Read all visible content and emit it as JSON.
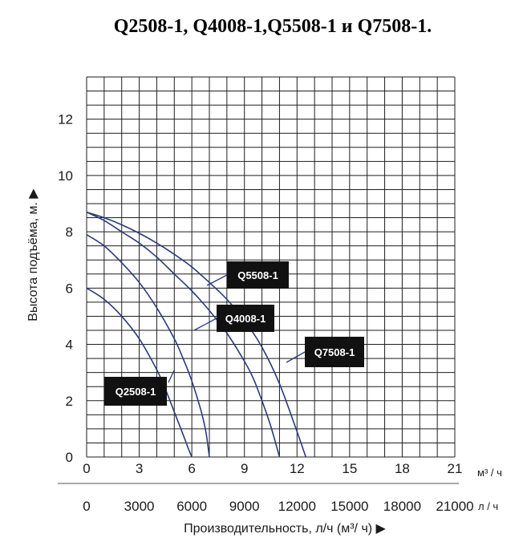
{
  "title": "Q2508-1, Q4008-1,Q5508-1 и Q7508-1.",
  "colors": {
    "grid": "#1e1e1e",
    "curve": "#2b3b7a",
    "callout_bg": "#111111",
    "callout_text": "#ffffff"
  },
  "chart_data": {
    "type": "line",
    "title": "Q2508-1, Q4008-1,Q5508-1 и Q7508-1.",
    "ylabel": "Высота подъёма, м. ▶",
    "xlabel": "Производительность, л/ч (м³/ ч) ▶",
    "x_unit": "м³ / ч",
    "x2_unit": "л / ч",
    "xlim": [
      0,
      21
    ],
    "ylim": [
      0,
      13.5
    ],
    "x_ticks": [
      "0",
      "3",
      "6",
      "9",
      "12",
      "15",
      "18",
      "21"
    ],
    "x_tick_values": [
      0,
      3,
      6,
      9,
      12,
      15,
      18,
      21
    ],
    "x2_ticks": [
      "0",
      "3000",
      "6000",
      "9000",
      "12000",
      "15000",
      "18000",
      "21000"
    ],
    "y_ticks": [
      "0",
      "2",
      "4",
      "6",
      "8",
      "10",
      "12"
    ],
    "y_tick_values": [
      0,
      2,
      4,
      6,
      8,
      10,
      12
    ],
    "grid": true,
    "series": [
      {
        "name": "Q2508-1",
        "x": [
          0,
          1,
          2,
          3,
          4,
          4.5,
          5,
          5.5,
          5.8,
          6
        ],
        "y": [
          6,
          5.6,
          5.0,
          4.2,
          3.1,
          2.4,
          1.6,
          0.8,
          0.3,
          0
        ]
      },
      {
        "name": "Q4008-1",
        "x": [
          0,
          1,
          2,
          3,
          4,
          5,
          5.5,
          6,
          6.5,
          6.8,
          7
        ],
        "y": [
          7.9,
          7.5,
          6.9,
          6.2,
          5.3,
          4.2,
          3.5,
          2.7,
          1.7,
          0.9,
          0
        ]
      },
      {
        "name": "Q5508-1",
        "x": [
          0,
          1,
          2,
          3,
          4,
          5,
          6,
          7,
          8,
          9,
          9.5,
          10,
          10.5,
          11
        ],
        "y": [
          8.7,
          8.4,
          8.0,
          7.6,
          7.1,
          6.5,
          5.9,
          5.2,
          4.4,
          3.4,
          2.8,
          2.0,
          1.1,
          0
        ]
      },
      {
        "name": "Q7508-1",
        "x": [
          0,
          1,
          2,
          3,
          4,
          5,
          6,
          7,
          8,
          9,
          10,
          11,
          12,
          12.5
        ],
        "y": [
          8.7,
          8.5,
          8.25,
          7.95,
          7.6,
          7.2,
          6.75,
          6.2,
          5.6,
          4.85,
          3.9,
          2.6,
          0.9,
          0
        ]
      }
    ],
    "annotations": [
      "Q2508-1",
      "Q4008-1",
      "Q5508-1",
      "Q7508-1"
    ]
  }
}
